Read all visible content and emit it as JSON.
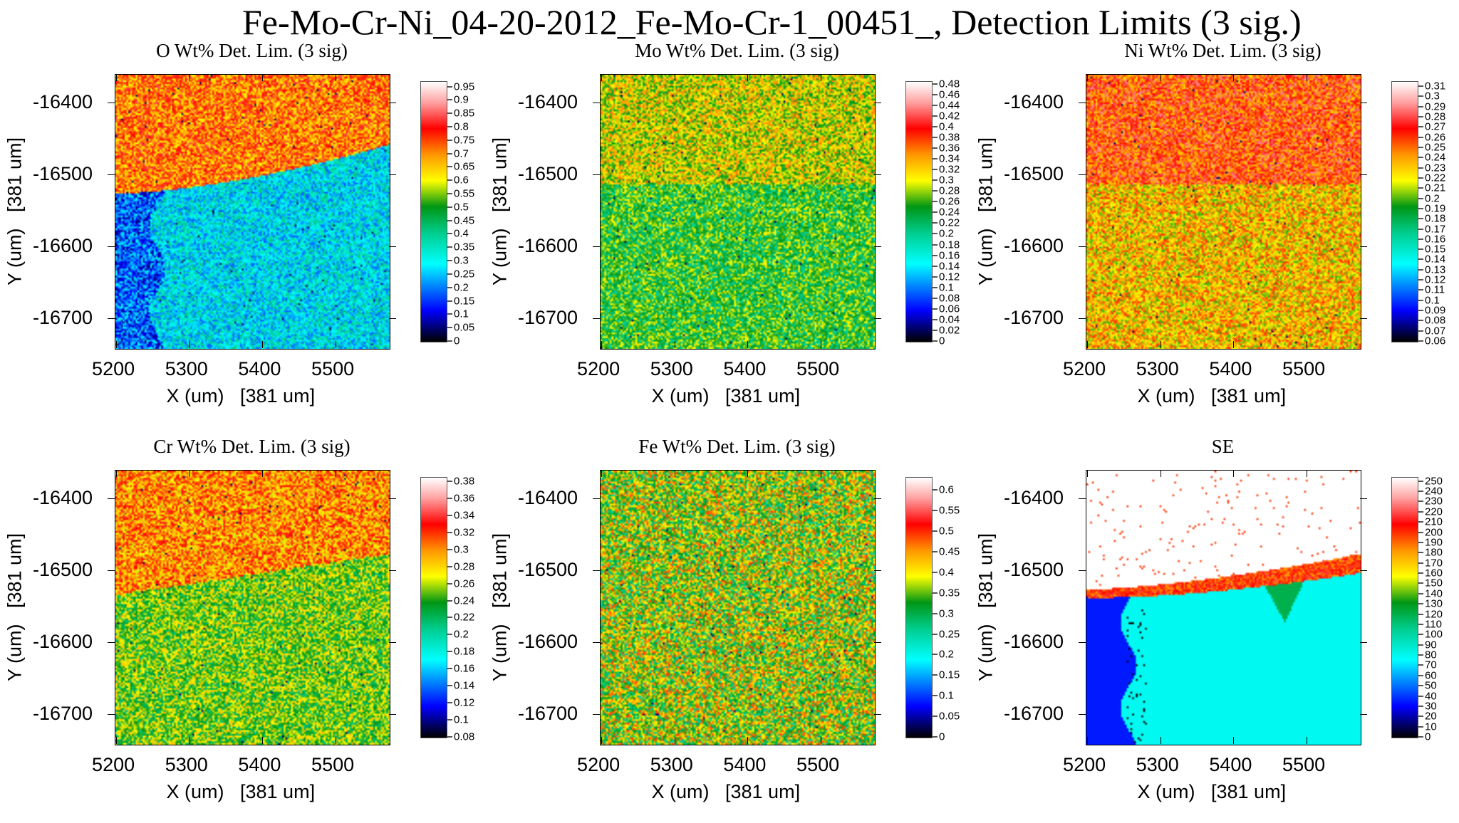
{
  "title": "Fe-Mo-Cr-Ni_04-20-2012_Fe-Mo-Cr-1_00451_, Detection Limits (3 sig.)",
  "chart_data": [
    {
      "type": "heatmap",
      "title": "O Wt% Det. Lim. (3 sig)",
      "xlabel": "X (um)   [381 um]",
      "ylabel": "Y (um)   [381 um]",
      "xticks": [
        "5200",
        "5300",
        "5400",
        "5500"
      ],
      "yticks": [
        "-16400",
        "-16500",
        "-16600",
        "-16700"
      ],
      "xlim": [
        5198,
        5573
      ],
      "ylim": [
        -16741,
        -16361
      ],
      "colorbar_range": [
        0,
        0.97
      ],
      "colorbar_ticks": [
        "0",
        "0.05",
        "0.1",
        "0.15",
        "0.2",
        "0.25",
        "0.3",
        "0.35",
        "0.4",
        "0.45",
        "0.5",
        "0.55",
        "0.6",
        "0.65",
        "0.7",
        "0.75",
        "0.8",
        "0.85",
        "0.9",
        "0.95"
      ],
      "regions": {
        "top": 0.72,
        "bottom": 0.3,
        "left_strip": 0.18
      }
    },
    {
      "type": "heatmap",
      "title": "Mo Wt% Det. Lim. (3 sig)",
      "xlabel": "X (um)   [381 um]",
      "ylabel": "Y (um)   [381 um]",
      "xticks": [
        "5200",
        "5300",
        "5400",
        "5500"
      ],
      "yticks": [
        "-16400",
        "-16500",
        "-16600",
        "-16700"
      ],
      "xlim": [
        5198,
        5573
      ],
      "ylim": [
        -16741,
        -16361
      ],
      "colorbar_range": [
        0,
        0.485
      ],
      "colorbar_ticks": [
        "0",
        "0.02",
        "0.04",
        "0.06",
        "0.08",
        "0.1",
        "0.12",
        "0.14",
        "0.16",
        "0.18",
        "0.2",
        "0.22",
        "0.24",
        "0.26",
        "0.28",
        "0.3",
        "0.32",
        "0.34",
        "0.36",
        "0.38",
        "0.4",
        "0.42",
        "0.44",
        "0.46",
        "0.48"
      ],
      "regions": {
        "top": 0.3,
        "bottom": 0.25
      }
    },
    {
      "type": "heatmap",
      "title": "Ni Wt% Det. Lim. (3 sig)",
      "xlabel": "X (um)   [381 um]",
      "ylabel": "Y (um)   [381 um]",
      "xticks": [
        "5200",
        "5300",
        "5400",
        "5500"
      ],
      "yticks": [
        "-16400",
        "-16500",
        "-16600",
        "-16700"
      ],
      "xlim": [
        5198,
        5573
      ],
      "ylim": [
        -16741,
        -16361
      ],
      "colorbar_range": [
        0.06,
        0.315
      ],
      "colorbar_ticks": [
        "0.06",
        "0.07",
        "0.08",
        "0.09",
        "0.1",
        "0.11",
        "0.12",
        "0.13",
        "0.14",
        "0.15",
        "0.16",
        "0.17",
        "0.18",
        "0.19",
        "0.2",
        "0.21",
        "0.22",
        "0.23",
        "0.24",
        "0.25",
        "0.26",
        "0.27",
        "0.28",
        "0.29",
        "0.3",
        "0.31"
      ],
      "regions": {
        "top": 0.26,
        "bottom": 0.23
      }
    },
    {
      "type": "heatmap",
      "title": "Cr Wt% Det. Lim. (3 sig)",
      "xlabel": "X (um)   [381 um]",
      "ylabel": "Y (um)   [381 um]",
      "xticks": [
        "5200",
        "5300",
        "5400",
        "5500"
      ],
      "yticks": [
        "-16400",
        "-16500",
        "-16600",
        "-16700"
      ],
      "xlim": [
        5198,
        5573
      ],
      "ylim": [
        -16741,
        -16361
      ],
      "colorbar_range": [
        0.08,
        0.385
      ],
      "colorbar_ticks": [
        "0.08",
        "0.1",
        "0.12",
        "0.14",
        "0.16",
        "0.18",
        "0.2",
        "0.22",
        "0.24",
        "0.26",
        "0.28",
        "0.3",
        "0.32",
        "0.34",
        "0.36",
        "0.38"
      ],
      "regions": {
        "top": 0.3,
        "bottom": 0.25
      }
    },
    {
      "type": "heatmap",
      "title": "Fe Wt% Det. Lim. (3 sig)",
      "xlabel": "X (um)   [381 um]",
      "ylabel": "Y (um)   [381 um]",
      "xticks": [
        "5200",
        "5300",
        "5400",
        "5500"
      ],
      "yticks": [
        "-16400",
        "-16500",
        "-16600",
        "-16700"
      ],
      "xlim": [
        5198,
        5573
      ],
      "ylim": [
        -16741,
        -16361
      ],
      "colorbar_range": [
        0,
        0.632
      ],
      "colorbar_ticks": [
        "0",
        "0.05",
        "0.1",
        "0.15",
        "0.2",
        "0.25",
        "0.3",
        "0.35",
        "0.4",
        "0.45",
        "0.5",
        "0.55",
        "0.6"
      ],
      "regions": {
        "top": 0.37,
        "bottom": 0.37
      }
    },
    {
      "type": "heatmap",
      "title": "SE",
      "xlabel": "X (um)   [381 um]",
      "ylabel": "Y (um)   [381 um]",
      "xticks": [
        "5200",
        "5300",
        "5400",
        "5500"
      ],
      "yticks": [
        "-16400",
        "-16500",
        "-16600",
        "-16700"
      ],
      "xlim": [
        5198,
        5573
      ],
      "ylim": [
        -16741,
        -16361
      ],
      "colorbar_range": [
        0,
        254
      ],
      "colorbar_ticks": [
        "0",
        "10",
        "20",
        "30",
        "40",
        "50",
        "60",
        "70",
        "80",
        "90",
        "100",
        "110",
        "120",
        "130",
        "140",
        "150",
        "160",
        "170",
        "180",
        "190",
        "200",
        "210",
        "220",
        "230",
        "240",
        "250"
      ],
      "regions": {
        "top": 255,
        "bottom": 80,
        "left_strip": 35
      }
    }
  ]
}
